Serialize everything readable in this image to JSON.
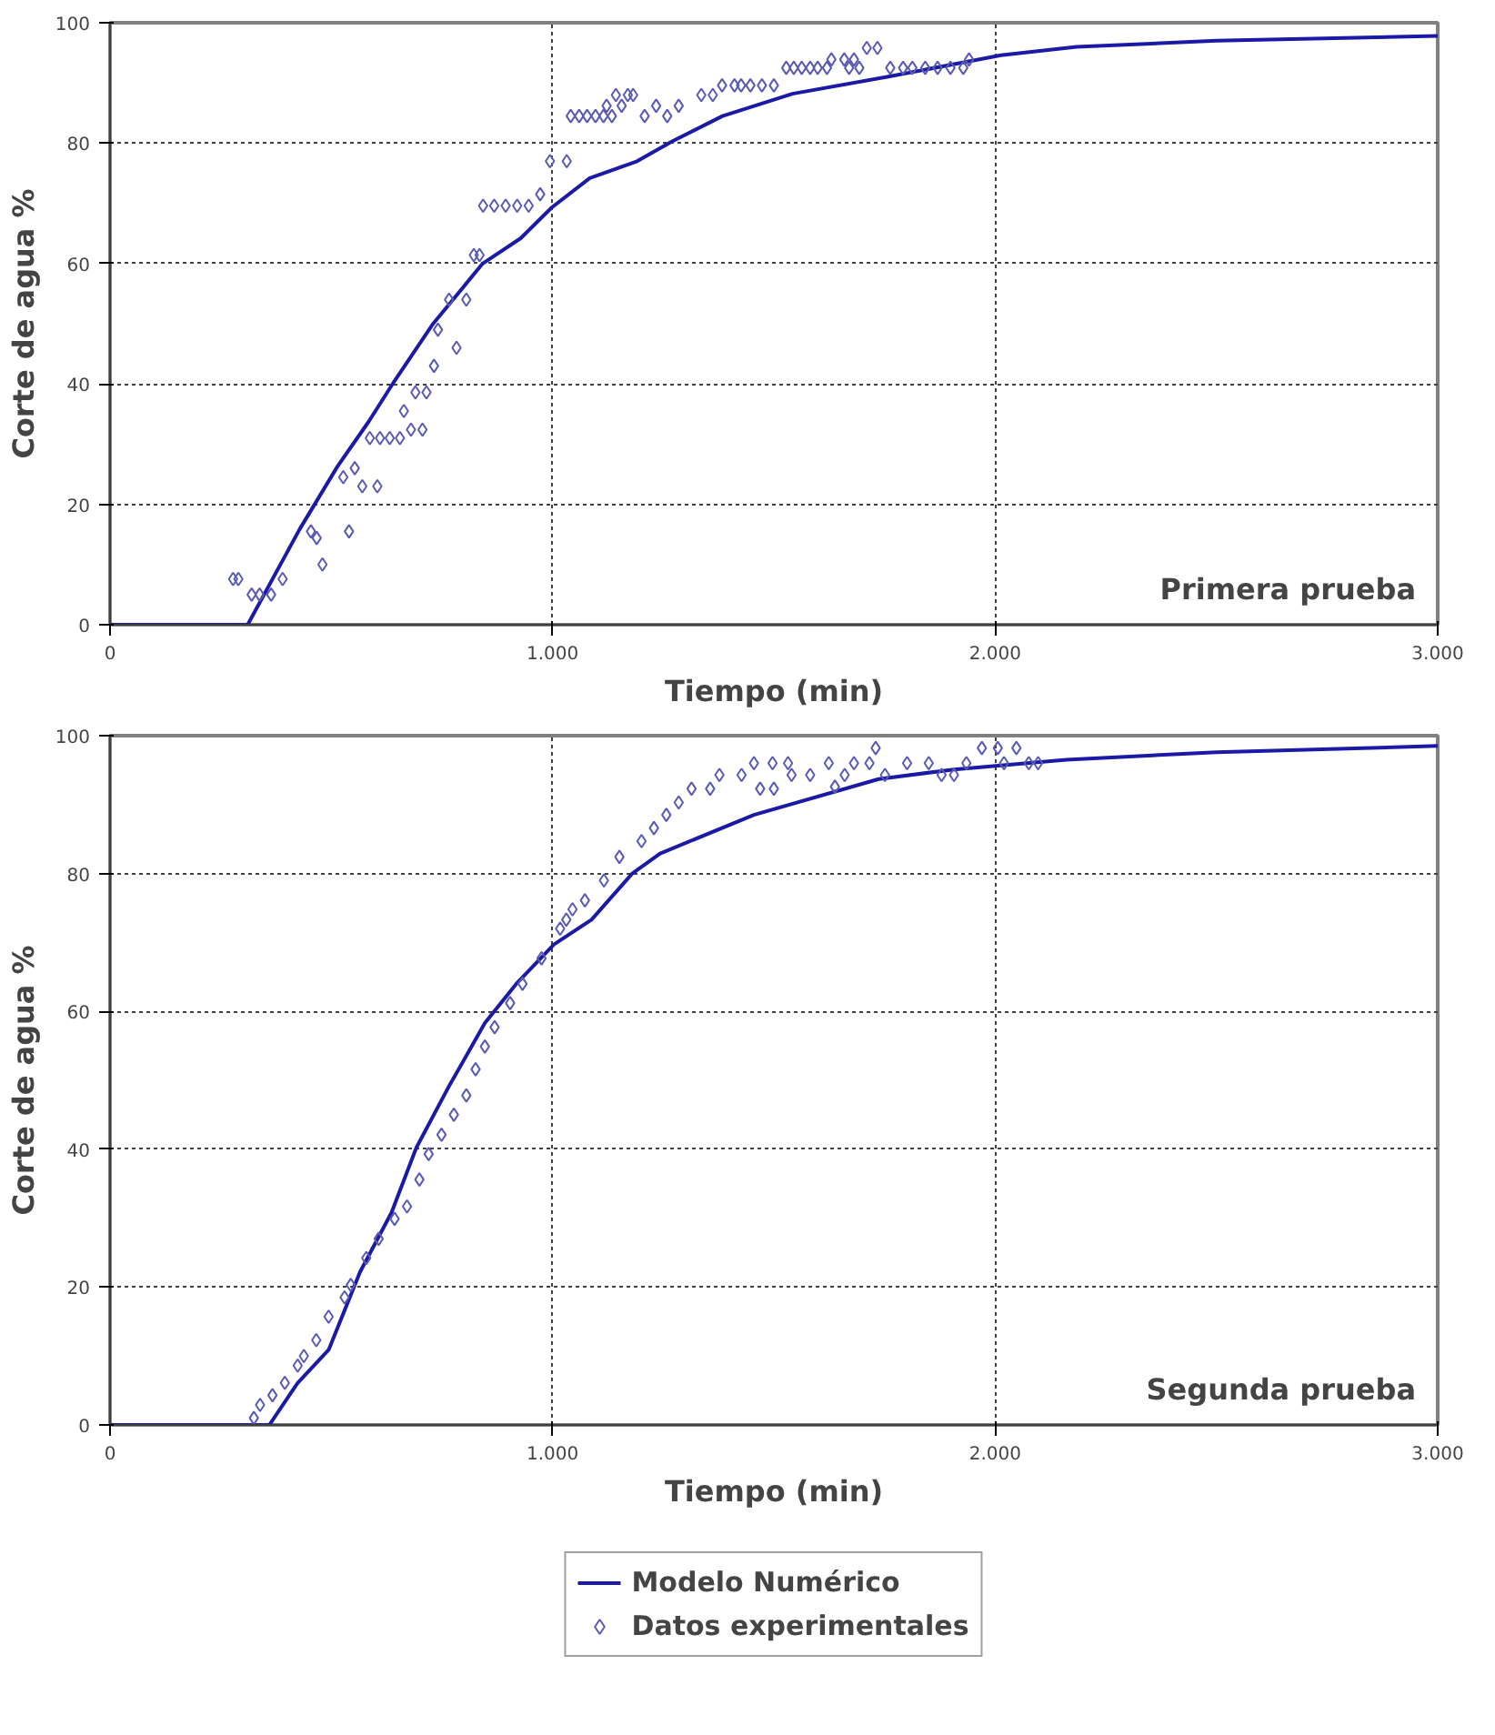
{
  "chart_data": [
    {
      "type": "line",
      "xlabel": "Tiempo (min)",
      "ylabel": "Corte de agua %",
      "annotations": [
        "Primera prueba"
      ],
      "xlim": [
        0,
        3000
      ],
      "ylim": [
        0,
        100
      ],
      "xticks": [
        0,
        {
          "value": 1000,
          "label": "1.000"
        },
        {
          "value": 2000,
          "label": "2.000"
        },
        {
          "value": 3000,
          "label": "3.000"
        }
      ],
      "yticks": [
        0,
        20,
        40,
        60,
        80,
        100
      ],
      "grid": true,
      "legend": false,
      "series": [
        {
          "color": "#1a1aa6",
          "line_style": "solid",
          "x": [
            0,
            311,
            428,
            514,
            585,
            642,
            728,
            842,
            928,
            998,
            1084,
            1191,
            1270,
            1384,
            1542,
            1756,
            1927,
            2013,
            2184,
            2500,
            3000
          ],
          "values": [
            0,
            0,
            15.8,
            26.3,
            33.8,
            40.4,
            49.8,
            60,
            64.2,
            69.3,
            74.2,
            77,
            80.3,
            84.5,
            88.2,
            91,
            93.4,
            94.6,
            96,
            97,
            97.8
          ]
        },
        {
          "type": "scatter",
          "color": "#5a5ab4",
          "marker": "diamond",
          "x": [
            278,
            290,
            320,
            338,
            364,
            390,
            454,
            467,
            480,
            527,
            540,
            553,
            570,
            604,
            587,
            610,
            632,
            655,
            664,
            680,
            706,
            690,
            715,
            732,
            741,
            783,
            766,
            805,
            822,
            835,
            843,
            868,
            894,
            920,
            946,
            972,
            994,
            1032,
            1041,
            1060,
            1078,
            1097,
            1115,
            1134,
            1122,
            1143,
            1170,
            1182,
            1156,
            1208,
            1234,
            1259,
            1285,
            1336,
            1362,
            1383,
            1411,
            1426,
            1447,
            1473,
            1500,
            1528,
            1545,
            1563,
            1582,
            1599,
            1620,
            1630,
            1659,
            1681,
            1670,
            1693,
            1710,
            1734,
            1763,
            1792,
            1813,
            1842,
            1870,
            1899,
            1928,
            1941
          ],
          "values": [
            7.6,
            7.6,
            5,
            5,
            5,
            7.6,
            15.5,
            14.4,
            10,
            24.5,
            15.5,
            26,
            23,
            23,
            31,
            31,
            31,
            31,
            35.5,
            32.4,
            32.4,
            38.6,
            38.6,
            43,
            49,
            46,
            54,
            54,
            61.4,
            61.4,
            69.6,
            69.6,
            69.6,
            69.6,
            69.6,
            71.5,
            77,
            77,
            84.5,
            84.5,
            84.5,
            84.5,
            84.5,
            84.5,
            86.2,
            88,
            88,
            88,
            86.2,
            84.5,
            86.2,
            84.5,
            86.2,
            88,
            88,
            89.6,
            89.6,
            89.6,
            89.6,
            89.6,
            89.6,
            92.5,
            92.5,
            92.5,
            92.5,
            92.5,
            92.5,
            93.9,
            93.9,
            93.9,
            92.5,
            92.5,
            95.8,
            95.8,
            92.5,
            92.5,
            92.5,
            92.5,
            92.5,
            92.5,
            92.5,
            93.9
          ]
        }
      ]
    },
    {
      "type": "line",
      "xlabel": "Tiempo (min)",
      "ylabel": "Corte de agua %",
      "annotations": [
        "Segunda prueba"
      ],
      "xlim": [
        0,
        3000
      ],
      "ylim": [
        0,
        100
      ],
      "xticks": [
        0,
        {
          "value": 1000,
          "label": "1.000"
        },
        {
          "value": 2000,
          "label": "2.000"
        },
        {
          "value": 3000,
          "label": "3.000"
        }
      ],
      "yticks": [
        0,
        20,
        40,
        60,
        80,
        100
      ],
      "grid": true,
      "legend": "bottom",
      "series": [
        {
          "name": "Modelo Numérico",
          "color": "#1a1aa6",
          "line_style": "solid",
          "x": [
            0,
            360,
            424,
            494,
            565,
            636,
            692,
            763,
            847,
            918,
            1003,
            1088,
            1180,
            1243,
            1455,
            1737,
            1907,
            2161,
            2500,
            3000
          ],
          "values": [
            0,
            0,
            6.1,
            10.9,
            22.2,
            30.8,
            40.2,
            48.8,
            58.3,
            64,
            69.7,
            73.3,
            80,
            82.9,
            88.5,
            93.7,
            95.1,
            96.5,
            97.6,
            98.5
          ]
        },
        {
          "type": "scatter",
          "name": "Datos experimentales",
          "color": "#5a5ab4",
          "marker": "diamond",
          "x": [
            325,
            339,
            367,
            395,
            424,
            438,
            466,
            494,
            530,
            544,
            579,
            607,
            643,
            671,
            699,
            720,
            749,
            777,
            805,
            826,
            847,
            869,
            904,
            932,
            975,
            1017,
            1045,
            1031,
            1073,
            1116,
            1151,
            1201,
            1229,
            1257,
            1285,
            1314,
            1356,
            1377,
            1427,
            1455,
            1469,
            1497,
            1500,
            1532,
            1540,
            1582,
            1624,
            1638,
            1660,
            1681,
            1716,
            1730,
            1751,
            1801,
            1850,
            1879,
            1907,
            1935,
            1970,
            2006,
            2020,
            2048,
            2076,
            2097
          ],
          "values": [
            1,
            2.9,
            4.3,
            6.1,
            8.6,
            10,
            12.3,
            15.7,
            18.5,
            20.3,
            24.2,
            27,
            29.9,
            31.7,
            35.6,
            39.3,
            42.1,
            45,
            47.8,
            51.6,
            54.9,
            57.7,
            61.2,
            64,
            67.7,
            72,
            74.8,
            73.3,
            76.1,
            79,
            82.4,
            84.7,
            86.6,
            88.5,
            90.3,
            92.3,
            92.3,
            94.3,
            94.3,
            96,
            92.3,
            96,
            92.3,
            96,
            94.3,
            94.3,
            96,
            92.6,
            94.3,
            96,
            96,
            98.2,
            94.3,
            96,
            96,
            94.3,
            94.3,
            96,
            98.2,
            98.2,
            96,
            98.2,
            96,
            96
          ]
        }
      ]
    }
  ]
}
